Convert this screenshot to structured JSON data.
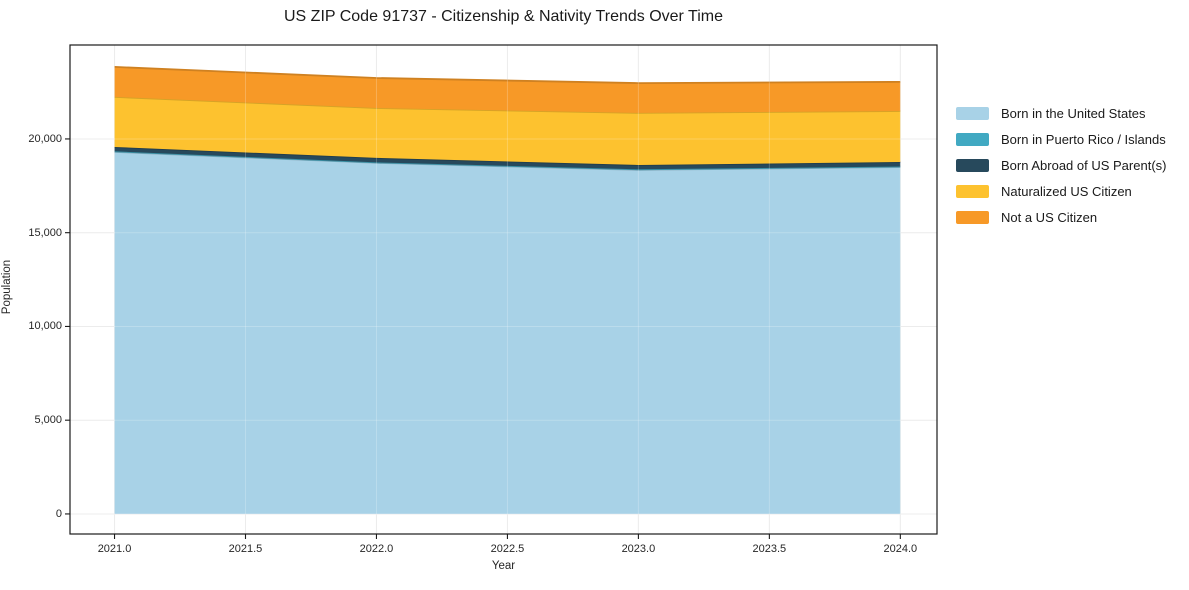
{
  "chart_data": {
    "type": "area",
    "stacked": true,
    "title": "US ZIP Code 91737 - Citizenship & Nativity Trends Over Time",
    "xlabel": "Year",
    "ylabel": "Population",
    "x": [
      2021,
      2022,
      2023,
      2024
    ],
    "series": [
      {
        "name": "Born in the United States",
        "color": "#a8d2e7",
        "values": [
          19310,
          18720,
          18350,
          18500
        ]
      },
      {
        "name": "Born in Puerto Rico / Islands",
        "color": "#41a9c2",
        "values": [
          30,
          30,
          30,
          30
        ]
      },
      {
        "name": "Born Abroad of US Parent(s)",
        "color": "#27495c",
        "values": [
          230,
          240,
          230,
          240
        ]
      },
      {
        "name": "Naturalized US Citizen",
        "color": "#fdc22f",
        "values": [
          2670,
          2660,
          2780,
          2720
        ]
      },
      {
        "name": "Not a US Citizen",
        "color": "#f79927",
        "values": [
          1600,
          1600,
          1590,
          1550
        ]
      }
    ],
    "totals": [
      23840,
      23250,
      22980,
      23040
    ],
    "x_ticks": [
      2021.0,
      2021.5,
      2022.0,
      2022.5,
      2023.0,
      2023.5,
      2024.0
    ],
    "x_tick_labels": [
      "2021.0",
      "2021.5",
      "2022.0",
      "2022.5",
      "2023.0",
      "2023.5",
      "2024.0"
    ],
    "y_ticks": [
      0,
      5000,
      10000,
      15000,
      20000
    ],
    "y_tick_labels": [
      "0",
      "5,000",
      "10,000",
      "15,000",
      "20,000"
    ],
    "xlim": [
      2020.83,
      2024.14
    ],
    "ylim": [
      -1070,
      25010
    ],
    "grid": true,
    "legend_position": "right"
  }
}
